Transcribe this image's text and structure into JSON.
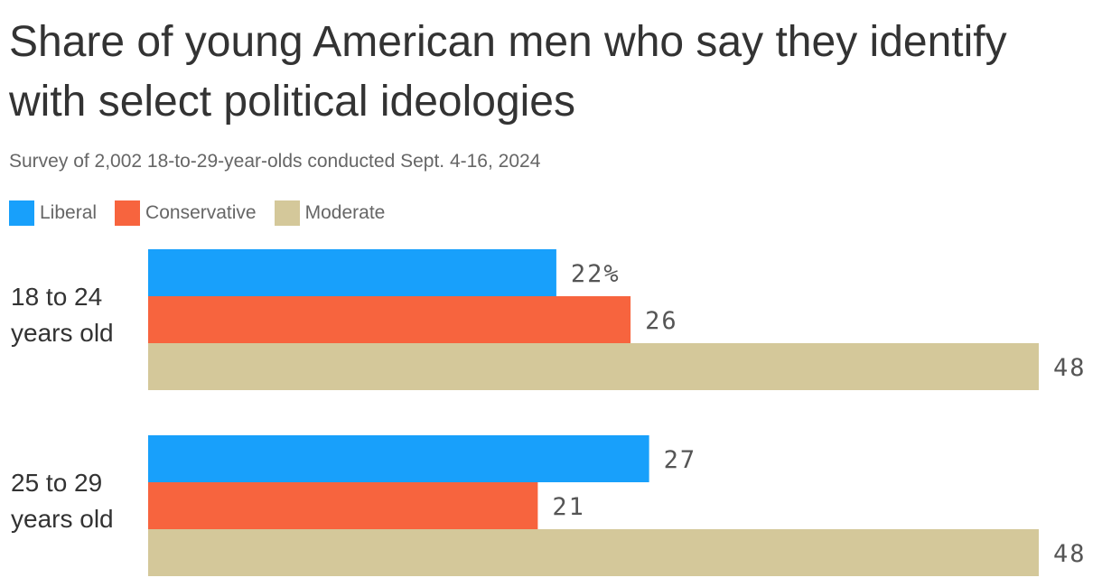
{
  "chart_data": {
    "type": "bar",
    "orientation": "horizontal",
    "title": "Share of young American men who say they identify with select political ideologies",
    "subtitle": "Survey of 2,002 18-to-29-year-olds conducted Sept. 4-16, 2024",
    "legend_position": "top-left",
    "categories": [
      {
        "lines": [
          "18 to 24",
          "years old"
        ]
      },
      {
        "lines": [
          "25 to 29",
          "years old"
        ]
      }
    ],
    "series": [
      {
        "name": "Liberal",
        "color": "#18a0fb",
        "values": [
          22,
          27
        ],
        "labels": [
          "22%",
          "27"
        ]
      },
      {
        "name": "Conservative",
        "color": "#f7643e",
        "values": [
          26,
          21
        ],
        "labels": [
          "26",
          "21"
        ]
      },
      {
        "name": "Moderate",
        "color": "#d4c89a",
        "values": [
          48,
          48
        ],
        "labels": [
          "48",
          "48"
        ]
      }
    ],
    "xlim": [
      0,
      48
    ],
    "grid": false
  }
}
